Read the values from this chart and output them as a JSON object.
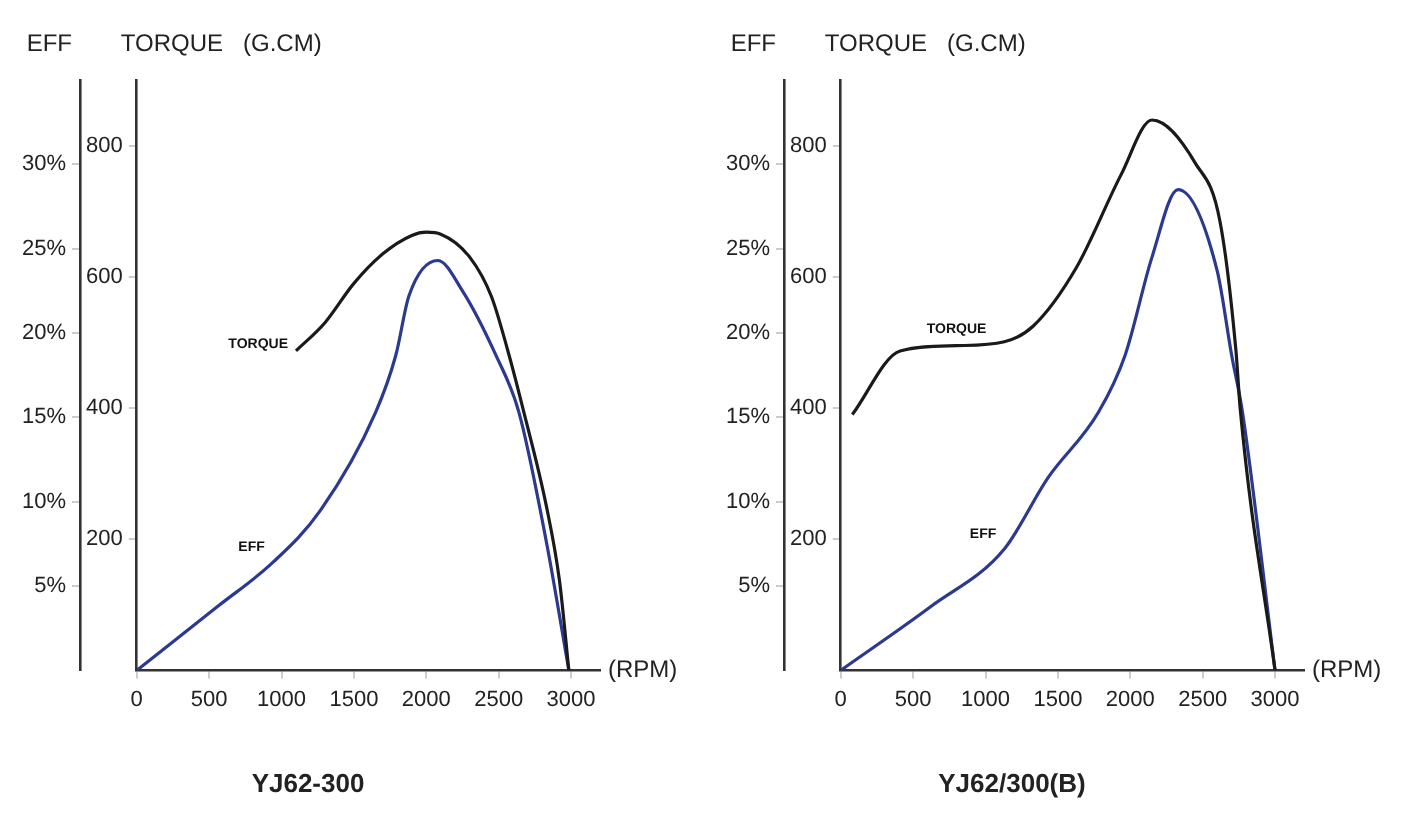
{
  "chart_data": [
    {
      "type": "line",
      "title": "YJ62-300",
      "xlabel": "(RPM)",
      "ylabel": "TORQUE   (G.CM)",
      "y2label": "EFF",
      "xlim": [
        0,
        3200
      ],
      "xticks": [
        0,
        500,
        1000,
        1500,
        2000,
        2500,
        3000
      ],
      "ylim": [
        0,
        900
      ],
      "yticks": [
        200,
        400,
        600,
        800
      ],
      "y2lim": [
        0,
        35
      ],
      "y2ticks": [
        {
          "value": 5,
          "label": "5%"
        },
        {
          "value": 10,
          "label": "10%"
        },
        {
          "value": 15,
          "label": "15%"
        },
        {
          "value": 20,
          "label": "20%"
        },
        {
          "value": 25,
          "label": "25%"
        },
        {
          "value": 30,
          "label": "30%"
        }
      ],
      "grid": false,
      "legend": false,
      "marker": "none",
      "line_style": "solid",
      "series": [
        {
          "name": "TORQUE",
          "color": "#1a1a1a",
          "x": [
            1100,
            1300,
            1500,
            1700,
            1900,
            2000,
            2100,
            2300,
            2450,
            2560,
            2670,
            2830,
            2920,
            2985
          ],
          "values": [
            487,
            530,
            590,
            635,
            663,
            668,
            665,
            630,
            570,
            490,
            397,
            250,
            137,
            0
          ]
        },
        {
          "name": "EFF",
          "color": "#2b3a8f",
          "axis": "y2",
          "x": [
            0,
            560,
            940,
            1270,
            1650,
            1790,
            1880,
            2080,
            2250,
            2480,
            2640,
            2830,
            2985
          ],
          "values": [
            0,
            3.8,
            6.4,
            9.5,
            15.3,
            18.7,
            22.2,
            24.3,
            22.5,
            18.7,
            15.3,
            7.6,
            0
          ]
        }
      ]
    },
    {
      "type": "line",
      "title": "YJ62/300(B)",
      "xlabel": "(RPM)",
      "ylabel": "TORQUE   (G.CM)",
      "y2label": "EFF",
      "xlim": [
        0,
        3200
      ],
      "xticks": [
        0,
        500,
        1000,
        1500,
        2000,
        2500,
        3000
      ],
      "ylim": [
        0,
        900
      ],
      "yticks": [
        200,
        400,
        600,
        800
      ],
      "y2lim": [
        0,
        35
      ],
      "y2ticks": [
        {
          "value": 5,
          "label": "5%"
        },
        {
          "value": 10,
          "label": "10%"
        },
        {
          "value": 15,
          "label": "15%"
        },
        {
          "value": 20,
          "label": "20%"
        },
        {
          "value": 25,
          "label": "25%"
        },
        {
          "value": 30,
          "label": "30%"
        }
      ],
      "grid": false,
      "legend": false,
      "marker": "none",
      "line_style": "solid",
      "series": [
        {
          "name": "TORQUE",
          "color": "#1a1a1a",
          "x": [
            80,
            410,
            800,
            1130,
            1330,
            1630,
            1935,
            2150,
            2450,
            2620,
            2730,
            2760,
            3000
          ],
          "values": [
            390,
            487,
            495,
            501,
            525,
            615,
            755,
            839,
            773,
            684,
            487,
            397,
            0
          ]
        },
        {
          "name": "EFF",
          "color": "#2b3a8f",
          "axis": "y2",
          "x": [
            0,
            625,
            1130,
            1430,
            1780,
            1965,
            2150,
            2330,
            2600,
            2700,
            2775,
            3000
          ],
          "values": [
            0,
            3.8,
            7.2,
            11.4,
            15.3,
            18.7,
            24.5,
            28.5,
            23.7,
            18.7,
            15.3,
            0
          ]
        }
      ]
    }
  ]
}
